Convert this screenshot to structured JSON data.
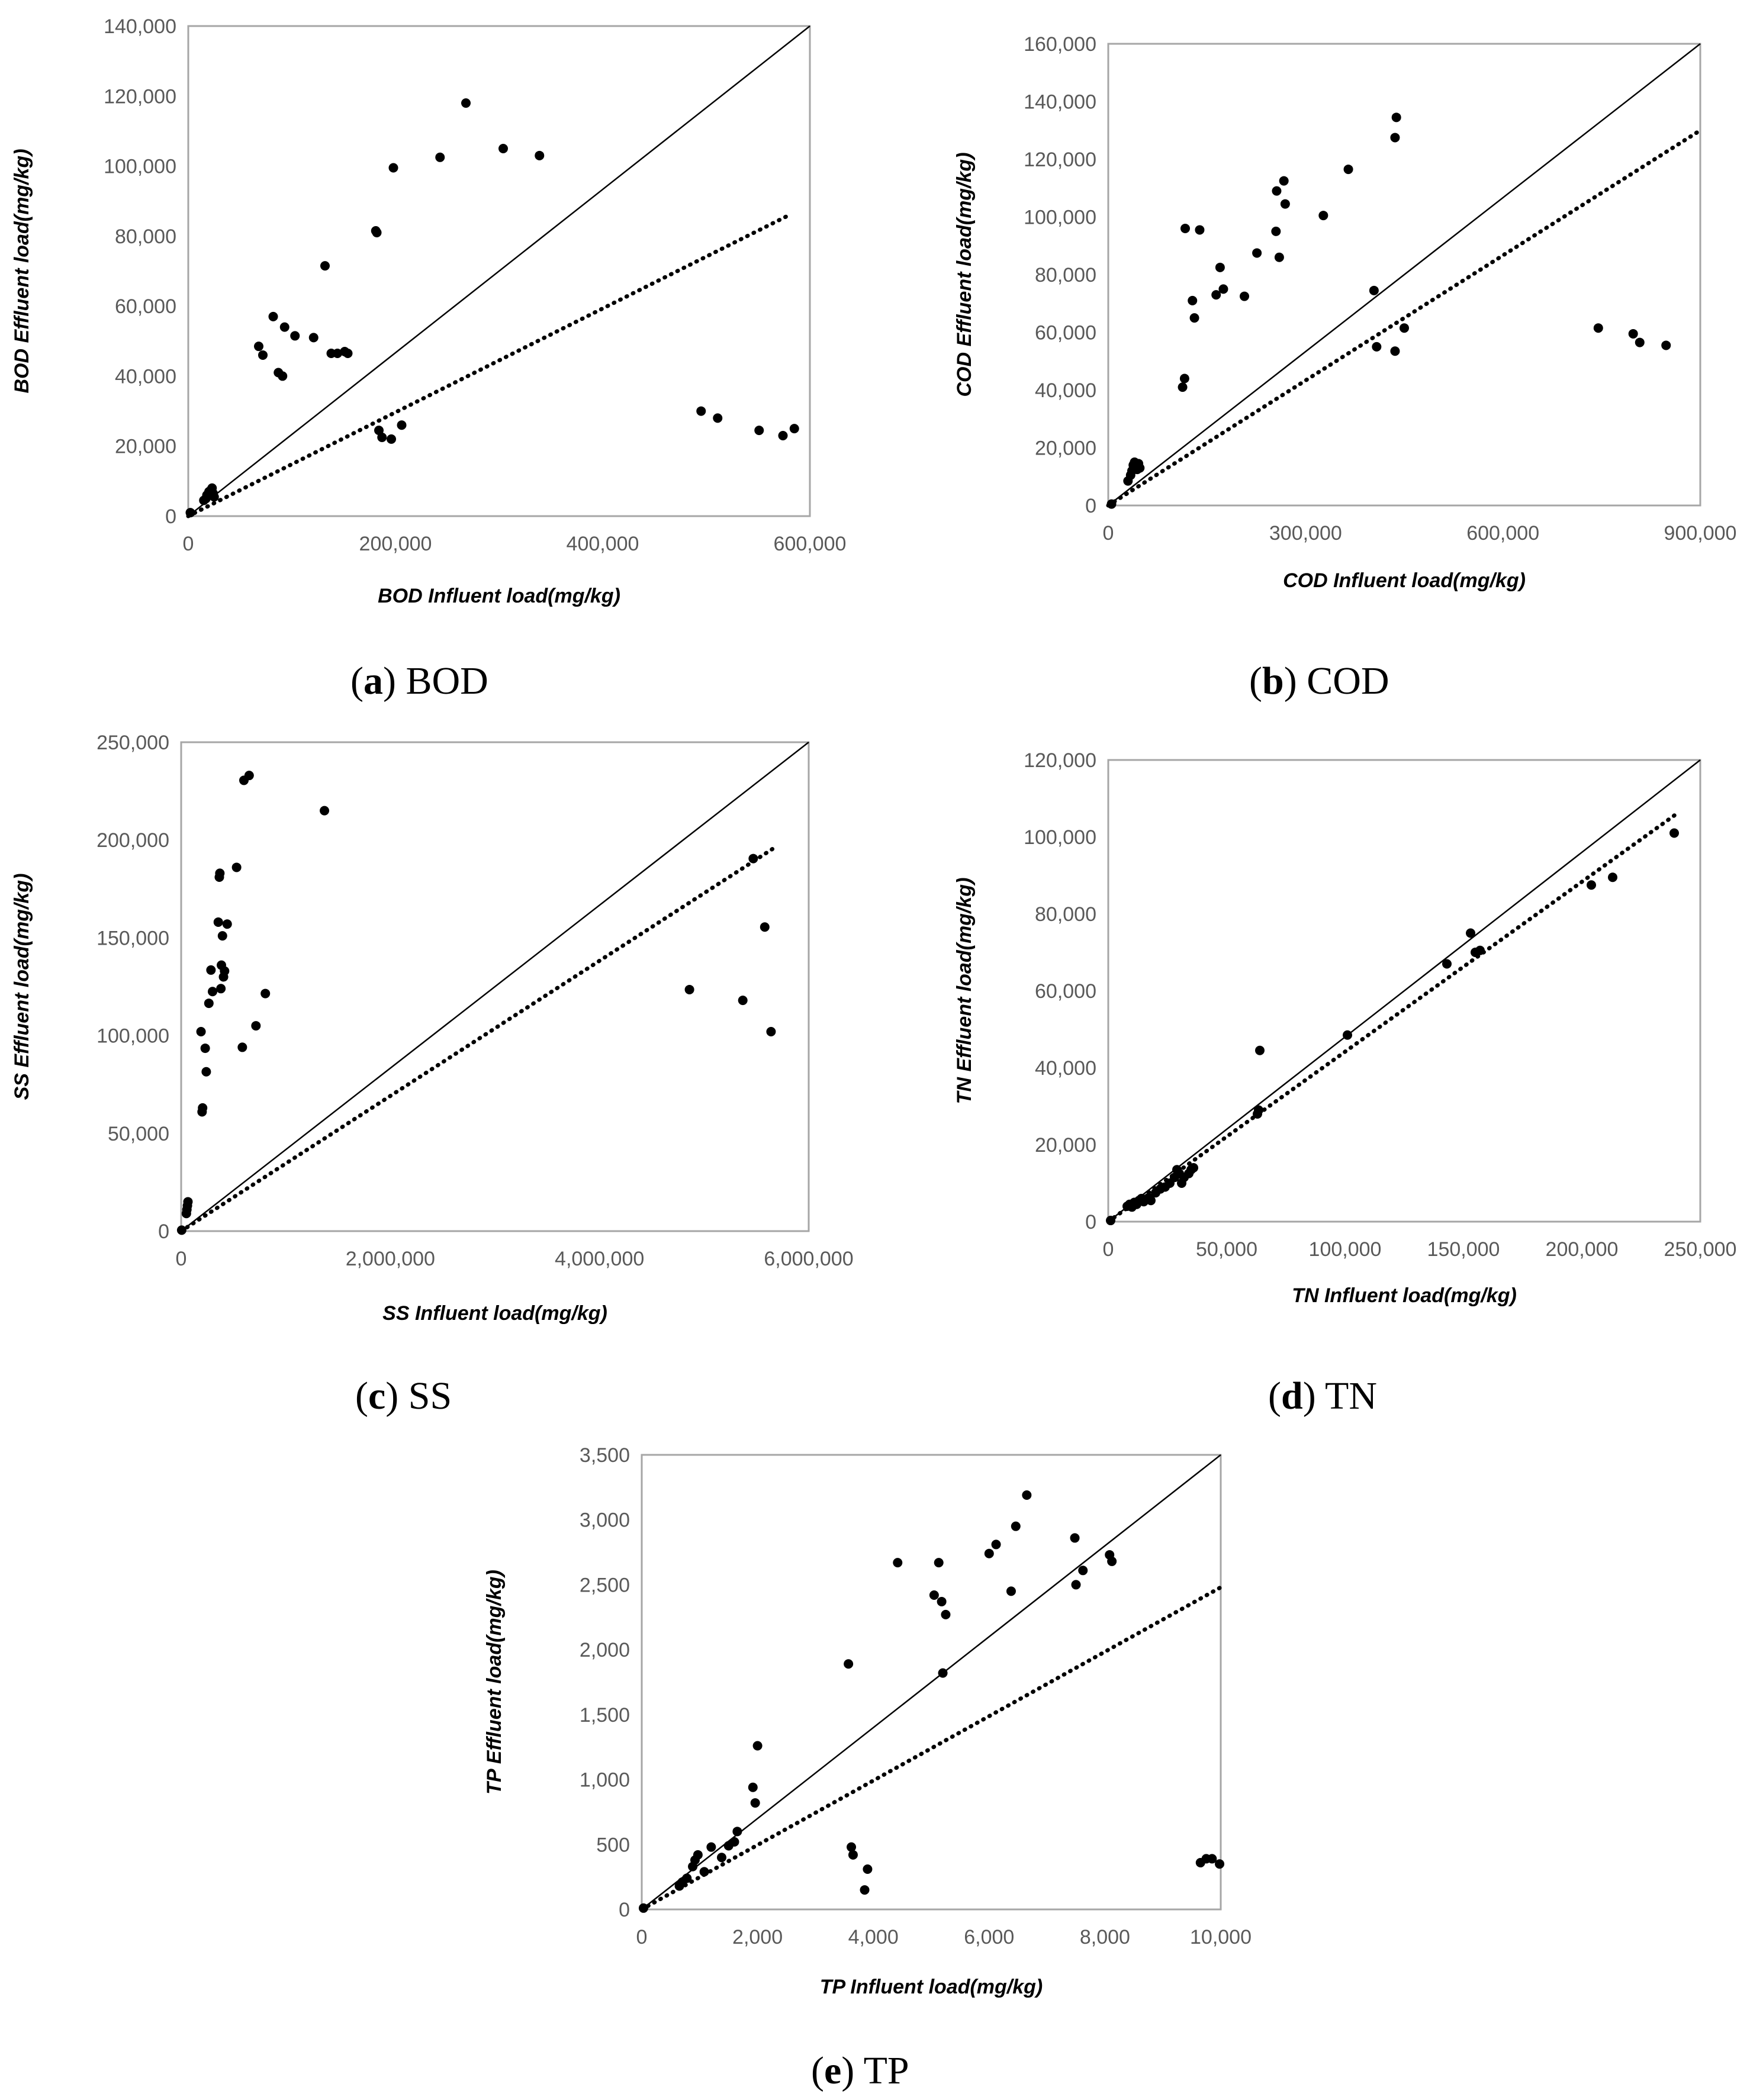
{
  "chart_data": [
    {
      "id": "bod",
      "type": "scatter",
      "caption_letter": "a",
      "caption_text": "BOD",
      "xlabel": "BOD Influent load(mg/kg)",
      "ylabel": "BOD Effluent load(mg/kg)",
      "xlim": [
        0,
        600000
      ],
      "ylim": [
        0,
        140000
      ],
      "xticks": [
        0,
        200000,
        400000,
        600000
      ],
      "xtick_labels": [
        "0",
        "200,000",
        "400,000",
        "600,000"
      ],
      "yticks": [
        0,
        20000,
        40000,
        60000,
        80000,
        100000,
        120000,
        140000
      ],
      "ytick_labels": [
        "0",
        "20,000",
        "40,000",
        "60,000",
        "80,000",
        "100,000",
        "120,000",
        "140,000"
      ],
      "identity_line": {
        "x": [
          0,
          600000
        ],
        "y": [
          0,
          140000
        ]
      },
      "trend_line": {
        "x": [
          0,
          580000
        ],
        "y": [
          0,
          86000
        ]
      },
      "points": [
        [
          2000,
          1000
        ],
        [
          15000,
          4500
        ],
        [
          17000,
          5000
        ],
        [
          18000,
          6000
        ],
        [
          20000,
          7000
        ],
        [
          22000,
          7500
        ],
        [
          23000,
          8000
        ],
        [
          24000,
          6500
        ],
        [
          25000,
          5500
        ],
        [
          68000,
          48500
        ],
        [
          72000,
          46000
        ],
        [
          82000,
          57000
        ],
        [
          87000,
          41000
        ],
        [
          91000,
          40000
        ],
        [
          93000,
          54000
        ],
        [
          103000,
          51500
        ],
        [
          121000,
          51000
        ],
        [
          132000,
          71500
        ],
        [
          138000,
          46500
        ],
        [
          144000,
          46500
        ],
        [
          151000,
          47000
        ],
        [
          154000,
          46500
        ],
        [
          181000,
          81500
        ],
        [
          182000,
          81000
        ],
        [
          184000,
          24500
        ],
        [
          187000,
          22500
        ],
        [
          196000,
          22000
        ],
        [
          198000,
          99500
        ],
        [
          206000,
          26000
        ],
        [
          243000,
          102500
        ],
        [
          268000,
          118000
        ],
        [
          304000,
          105000
        ],
        [
          339000,
          103000
        ],
        [
          495000,
          30000
        ],
        [
          511000,
          28000
        ],
        [
          551000,
          24500
        ],
        [
          574000,
          23000
        ],
        [
          585000,
          25000
        ]
      ]
    },
    {
      "id": "cod",
      "type": "scatter",
      "caption_letter": "b",
      "caption_text": "COD",
      "xlabel": "COD Influent load(mg/kg)",
      "ylabel": "COD Effluent load(mg/kg)",
      "xlim": [
        0,
        900000
      ],
      "ylim": [
        0,
        160000
      ],
      "xticks": [
        0,
        300000,
        600000,
        900000
      ],
      "xtick_labels": [
        "0",
        "300,000",
        "600,000",
        "900,000"
      ],
      "yticks": [
        0,
        20000,
        40000,
        60000,
        80000,
        100000,
        120000,
        140000,
        160000
      ],
      "ytick_labels": [
        "0",
        "20,000",
        "40,000",
        "60,000",
        "80,000",
        "100,000",
        "120,000",
        "140,000",
        "160,000"
      ],
      "identity_line": {
        "x": [
          0,
          900000
        ],
        "y": [
          0,
          160000
        ]
      },
      "trend_line": {
        "x": [
          0,
          900000
        ],
        "y": [
          0,
          130000
        ]
      },
      "points": [
        [
          5000,
          500
        ],
        [
          30000,
          8500
        ],
        [
          34000,
          10500
        ],
        [
          36000,
          12000
        ],
        [
          38000,
          14000
        ],
        [
          40000,
          15000
        ],
        [
          42000,
          13500
        ],
        [
          44000,
          12500
        ],
        [
          46000,
          14500
        ],
        [
          48000,
          13000
        ],
        [
          113000,
          41000
        ],
        [
          116000,
          44000
        ],
        [
          117000,
          96000
        ],
        [
          128000,
          71000
        ],
        [
          131000,
          65000
        ],
        [
          139000,
          95500
        ],
        [
          164000,
          73000
        ],
        [
          170000,
          82500
        ],
        [
          175000,
          75000
        ],
        [
          207000,
          72500
        ],
        [
          226000,
          87500
        ],
        [
          255000,
          95000
        ],
        [
          256000,
          109000
        ],
        [
          260000,
          86000
        ],
        [
          267000,
          112500
        ],
        [
          269000,
          104500
        ],
        [
          327000,
          100500
        ],
        [
          365000,
          116500
        ],
        [
          404000,
          74500
        ],
        [
          408000,
          55000
        ],
        [
          436000,
          53500
        ],
        [
          436000,
          127500
        ],
        [
          438000,
          134500
        ],
        [
          450000,
          61500
        ],
        [
          745000,
          61500
        ],
        [
          798000,
          59500
        ],
        [
          808000,
          56500
        ],
        [
          848000,
          55500
        ]
      ]
    },
    {
      "id": "ss",
      "type": "scatter",
      "caption_letter": "c",
      "caption_text": "SS",
      "xlabel": "SS Influent load(mg/kg)",
      "ylabel": "SS Effluent load(mg/kg)",
      "xlim": [
        0,
        6000000
      ],
      "ylim": [
        0,
        250000
      ],
      "xticks": [
        0,
        2000000,
        4000000,
        6000000
      ],
      "xtick_labels": [
        "0",
        "2,000,000",
        "4,000,000",
        "6,000,000"
      ],
      "yticks": [
        0,
        50000,
        100000,
        150000,
        200000,
        250000
      ],
      "ytick_labels": [
        "0",
        "50,000",
        "100,000",
        "150,000",
        "200,000",
        "250,000"
      ],
      "identity_line": {
        "x": [
          0,
          6000000
        ],
        "y": [
          0,
          250000
        ]
      },
      "trend_line": {
        "x": [
          0,
          5700000
        ],
        "y": [
          0,
          197000
        ]
      },
      "points": [
        [
          5000,
          500
        ],
        [
          50000,
          9000
        ],
        [
          55000,
          11000
        ],
        [
          60000,
          13000
        ],
        [
          65000,
          15000
        ],
        [
          190000,
          102000
        ],
        [
          200000,
          61000
        ],
        [
          205000,
          63000
        ],
        [
          230000,
          93500
        ],
        [
          240000,
          81500
        ],
        [
          265000,
          116500
        ],
        [
          285000,
          133500
        ],
        [
          300000,
          122500
        ],
        [
          355000,
          158000
        ],
        [
          365000,
          181000
        ],
        [
          370000,
          183000
        ],
        [
          380000,
          124000
        ],
        [
          385000,
          136000
        ],
        [
          395000,
          151000
        ],
        [
          405000,
          130000
        ],
        [
          415000,
          133000
        ],
        [
          440000,
          157000
        ],
        [
          530000,
          186000
        ],
        [
          585000,
          94000
        ],
        [
          600000,
          230500
        ],
        [
          650000,
          233000
        ],
        [
          715000,
          105000
        ],
        [
          805000,
          121500
        ],
        [
          1370000,
          215000
        ],
        [
          4860000,
          123500
        ],
        [
          5370000,
          118000
        ],
        [
          5470000,
          190500
        ],
        [
          5580000,
          155500
        ],
        [
          5640000,
          102000
        ]
      ]
    },
    {
      "id": "tn",
      "type": "scatter",
      "caption_letter": "d",
      "caption_text": "TN",
      "xlabel": "TN Influent load(mg/kg)",
      "ylabel": "TN Effluent load(mg/kg)",
      "xlim": [
        0,
        250000
      ],
      "ylim": [
        0,
        120000
      ],
      "xticks": [
        0,
        50000,
        100000,
        150000,
        200000,
        250000
      ],
      "xtick_labels": [
        "0",
        "50,000",
        "100,000",
        "150,000",
        "200,000",
        "250,000"
      ],
      "yticks": [
        0,
        20000,
        40000,
        60000,
        80000,
        100000,
        120000
      ],
      "ytick_labels": [
        "0",
        "20,000",
        "40,000",
        "60,000",
        "80,000",
        "100,000",
        "120,000"
      ],
      "identity_line": {
        "x": [
          0,
          250000
        ],
        "y": [
          0,
          120000
        ]
      },
      "trend_line": {
        "x": [
          0,
          240000
        ],
        "y": [
          0,
          106000
        ]
      },
      "points": [
        [
          1000,
          300
        ],
        [
          8000,
          4000
        ],
        [
          9000,
          4500
        ],
        [
          10000,
          3800
        ],
        [
          11000,
          5000
        ],
        [
          12000,
          4500
        ],
        [
          13000,
          5500
        ],
        [
          14000,
          6000
        ],
        [
          15000,
          5200
        ],
        [
          16000,
          5800
        ],
        [
          17000,
          6200
        ],
        [
          18000,
          5500
        ],
        [
          20000,
          7500
        ],
        [
          22000,
          8500
        ],
        [
          24000,
          9000
        ],
        [
          26000,
          10000
        ],
        [
          28000,
          11500
        ],
        [
          29000,
          13500
        ],
        [
          30000,
          12500
        ],
        [
          31000,
          10000
        ],
        [
          32000,
          11500
        ],
        [
          34000,
          12500
        ],
        [
          35000,
          13500
        ],
        [
          36000,
          14000
        ],
        [
          63000,
          28000
        ],
        [
          63500,
          29000
        ],
        [
          64000,
          44500
        ],
        [
          101000,
          48500
        ],
        [
          143000,
          67000
        ],
        [
          153000,
          75000
        ],
        [
          155000,
          70000
        ],
        [
          157000,
          70500
        ],
        [
          204000,
          87500
        ],
        [
          213000,
          89500
        ],
        [
          239000,
          101000
        ]
      ]
    },
    {
      "id": "tp",
      "type": "scatter",
      "caption_letter": "e",
      "caption_text": "TP",
      "xlabel": "TP Influent load(mg/kg)",
      "ylabel": "TP Effluent load(mg/kg)",
      "xlim": [
        0,
        10000
      ],
      "ylim": [
        0,
        3500
      ],
      "xticks": [
        0,
        2000,
        4000,
        6000,
        8000,
        10000
      ],
      "xtick_labels": [
        "0",
        "2,000",
        "4,000",
        "6,000",
        "8,000",
        "10,000"
      ],
      "yticks": [
        0,
        500,
        1000,
        1500,
        2000,
        2500,
        3000,
        3500
      ],
      "ytick_labels": [
        "0",
        "500",
        "1,000",
        "1,500",
        "2,000",
        "2,500",
        "3,000",
        "3,500"
      ],
      "identity_line": {
        "x": [
          0,
          10000
        ],
        "y": [
          0,
          3500
        ]
      },
      "trend_line": {
        "x": [
          0,
          10000
        ],
        "y": [
          0,
          2480
        ]
      },
      "points": [
        [
          30,
          10
        ],
        [
          650,
          180
        ],
        [
          700,
          210
        ],
        [
          780,
          240
        ],
        [
          880,
          330
        ],
        [
          920,
          380
        ],
        [
          970,
          420
        ],
        [
          1080,
          290
        ],
        [
          1200,
          480
        ],
        [
          1380,
          400
        ],
        [
          1500,
          490
        ],
        [
          1600,
          520
        ],
        [
          1650,
          600
        ],
        [
          1920,
          940
        ],
        [
          1960,
          820
        ],
        [
          2000,
          1260
        ],
        [
          3570,
          1890
        ],
        [
          3620,
          480
        ],
        [
          3650,
          420
        ],
        [
          3850,
          150
        ],
        [
          3900,
          310
        ],
        [
          4420,
          2670
        ],
        [
          5050,
          2420
        ],
        [
          5130,
          2670
        ],
        [
          5180,
          2370
        ],
        [
          5200,
          1820
        ],
        [
          5250,
          2270
        ],
        [
          6000,
          2740
        ],
        [
          6120,
          2810
        ],
        [
          6380,
          2450
        ],
        [
          6460,
          2950
        ],
        [
          6650,
          3190
        ],
        [
          7480,
          2860
        ],
        [
          7500,
          2500
        ],
        [
          7620,
          2610
        ],
        [
          8080,
          2730
        ],
        [
          8120,
          2680
        ],
        [
          9650,
          360
        ],
        [
          9750,
          390
        ],
        [
          9850,
          390
        ],
        [
          9980,
          350
        ]
      ]
    }
  ]
}
